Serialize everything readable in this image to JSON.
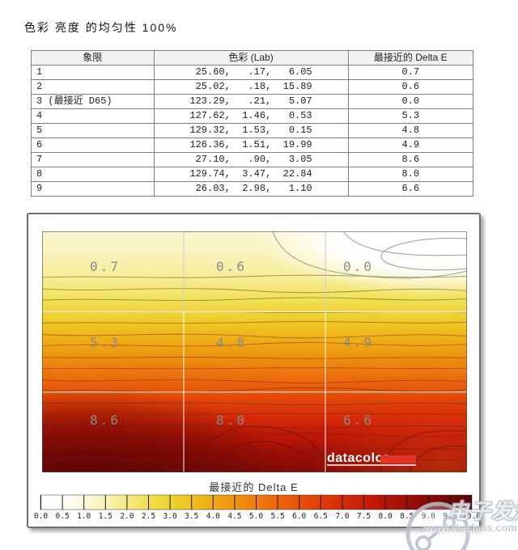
{
  "page_title": "色彩 亮度 的均匀性 100%",
  "table": {
    "headers": [
      "象限",
      "色彩 (Lab)",
      "最接近的 Delta E"
    ],
    "rows": [
      {
        "quadrant": "1",
        "lab": [
          "25.60",
          ".17",
          "6.05"
        ],
        "delta_e": "0.7"
      },
      {
        "quadrant": "2",
        "lab": [
          "25.02",
          ".18",
          "15.89"
        ],
        "delta_e": "0.6"
      },
      {
        "quadrant": "3 (最接近 D65)",
        "lab": [
          "123.29",
          ".21",
          "5.07"
        ],
        "delta_e": "0.0"
      },
      {
        "quadrant": "4",
        "lab": [
          "127.62",
          "1.46",
          "0.53"
        ],
        "delta_e": "5.3"
      },
      {
        "quadrant": "5",
        "lab": [
          "129.32",
          "1.53",
          "0.15"
        ],
        "delta_e": "4.8"
      },
      {
        "quadrant": "6",
        "lab": [
          "126.36",
          "1.51",
          "19.99"
        ],
        "delta_e": "4.9"
      },
      {
        "quadrant": "7",
        "lab": [
          "27.10",
          ".90",
          "3.05"
        ],
        "delta_e": "8.6"
      },
      {
        "quadrant": "8",
        "lab": [
          "129.74",
          "3.47",
          "22.84"
        ],
        "delta_e": "8.0"
      },
      {
        "quadrant": "9",
        "lab": [
          "26.03",
          "2.98",
          "1.10"
        ],
        "delta_e": "6.6"
      }
    ]
  },
  "chart_data": {
    "type": "heatmap",
    "title": "最接近的 Delta E",
    "rows": 3,
    "cols": 3,
    "grid": [
      [
        0.7,
        0.6,
        0.0
      ],
      [
        5.3,
        4.8,
        4.9
      ],
      [
        8.6,
        8.0,
        6.6
      ]
    ],
    "labels": [
      "0.7",
      "0.6",
      "0.0",
      "5.3",
      "4.8",
      "4.9",
      "8.6",
      "8.0",
      "6.6"
    ],
    "brand": "datacolor",
    "colorbar": {
      "title": "最接近的 Delta E",
      "min": 0.0,
      "max": 10.0,
      "step": 0.5,
      "tick_labels": [
        "0.0",
        "0.5",
        "1.0",
        "1.5",
        "2.0",
        "2.5",
        "3.0",
        "3.5",
        "4.0",
        "4.5",
        "5.0",
        "5.5",
        "6.0",
        "6.5",
        "7.0",
        "7.5",
        "8.0",
        "8.5",
        "9.0",
        "9.5",
        "10.0"
      ],
      "min_color": "#FFFFFF",
      "mid_color": "#EE7D0C",
      "max_color": "#550605"
    },
    "legend_position": "bottom",
    "grid_lines": true
  },
  "watermark": {
    "site_name": "电子发烧友",
    "site_url": "www.elecfans.com"
  },
  "colors": {
    "brand_red": "#D92B1E",
    "contour_line": "#5A2D0F",
    "table_border": "#7E7E7E",
    "label_gray": "#8A8A8A"
  }
}
